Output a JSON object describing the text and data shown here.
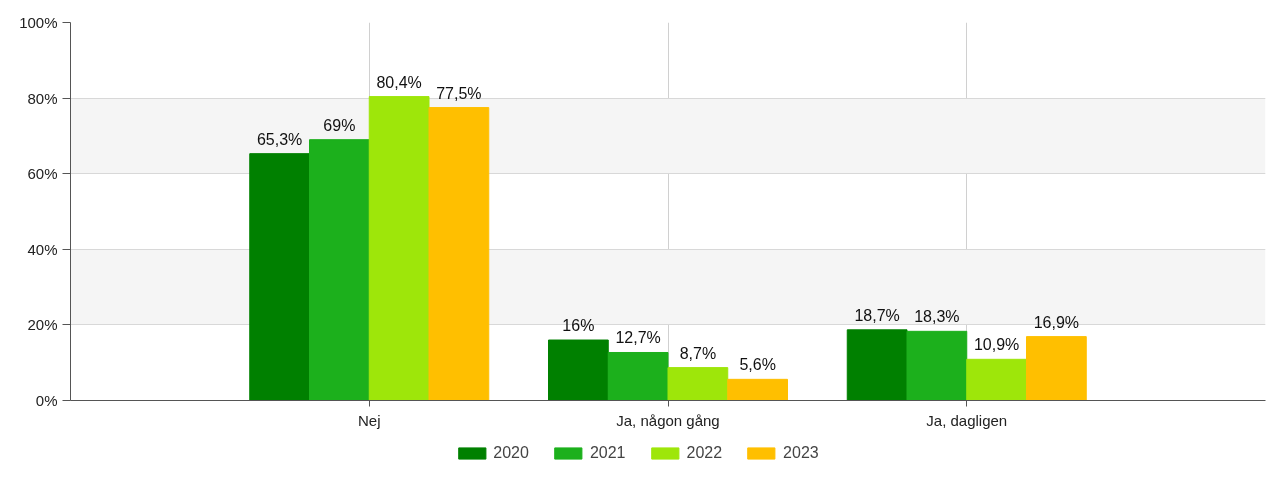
{
  "chart_data": {
    "type": "bar",
    "categories": [
      "Nej",
      "Ja, någon gång",
      "Ja, dagligen"
    ],
    "series": [
      {
        "name": "2020",
        "color": "#008000",
        "values": [
          65.3,
          16,
          18.7
        ],
        "value_labels": [
          "65,3%",
          "16%",
          "18,7%"
        ]
      },
      {
        "name": "2021",
        "color": "#1cb01c",
        "values": [
          69,
          12.7,
          18.3
        ],
        "value_labels": [
          "69%",
          "12,7%",
          "18,3%"
        ]
      },
      {
        "name": "2022",
        "color": "#9ee60a",
        "values": [
          80.4,
          8.7,
          10.9
        ],
        "value_labels": [
          "80,4%",
          "8,7%",
          "10,9%"
        ]
      },
      {
        "name": "2023",
        "color": "#ffbf00",
        "values": [
          77.5,
          5.6,
          16.9
        ],
        "value_labels": [
          "77,5%",
          "5,6%",
          "16,9%"
        ]
      }
    ],
    "ylim": [
      0,
      100
    ],
    "yticks": [
      {
        "value": 0,
        "label": "0%"
      },
      {
        "value": 20,
        "label": "20%"
      },
      {
        "value": 40,
        "label": "40%"
      },
      {
        "value": 60,
        "label": "60%"
      },
      {
        "value": 80,
        "label": "80%"
      },
      {
        "value": 100,
        "label": "100%"
      }
    ],
    "grid": true,
    "legend": "bottom"
  }
}
